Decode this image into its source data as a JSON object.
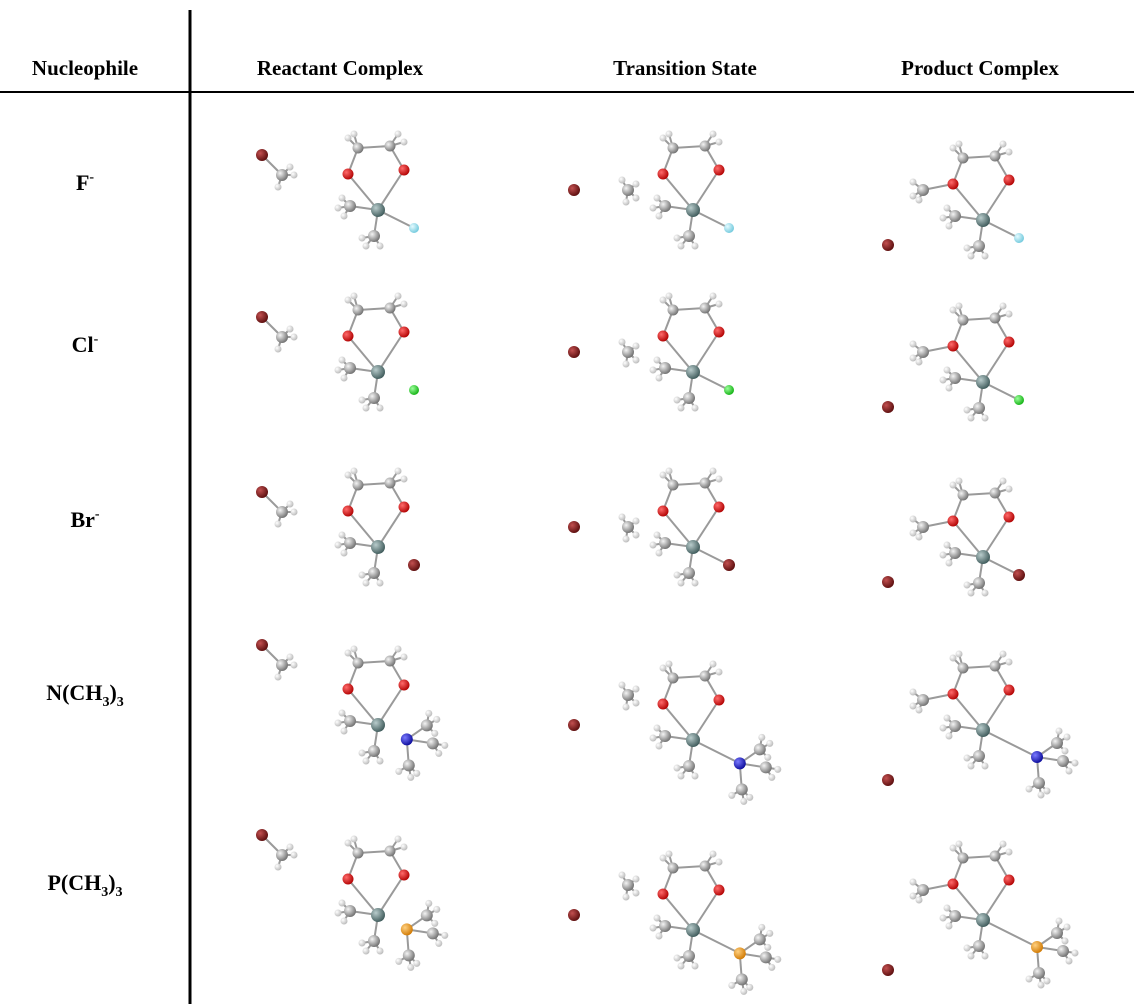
{
  "table": {
    "headers": [
      "Nucleophile",
      "Reactant Complex",
      "Transition State",
      "Product Complex"
    ],
    "rows": [
      {
        "nucleophile": [
          {
            "text": "F"
          },
          {
            "text": "-",
            "style": "sup"
          }
        ]
      },
      {
        "nucleophile": [
          {
            "text": "Cl"
          },
          {
            "text": "-",
            "style": "sup"
          }
        ]
      },
      {
        "nucleophile": [
          {
            "text": "Br"
          },
          {
            "text": "-",
            "style": "sup"
          }
        ]
      },
      {
        "nucleophile": [
          {
            "text": "N(CH"
          },
          {
            "text": "3",
            "style": "sub"
          },
          {
            "text": ")"
          },
          {
            "text": "3",
            "style": "sub"
          }
        ]
      },
      {
        "nucleophile": [
          {
            "text": "P(CH"
          },
          {
            "text": "3",
            "style": "sub"
          },
          {
            "text": ")"
          },
          {
            "text": "3",
            "style": "sub"
          }
        ]
      }
    ]
  }
}
